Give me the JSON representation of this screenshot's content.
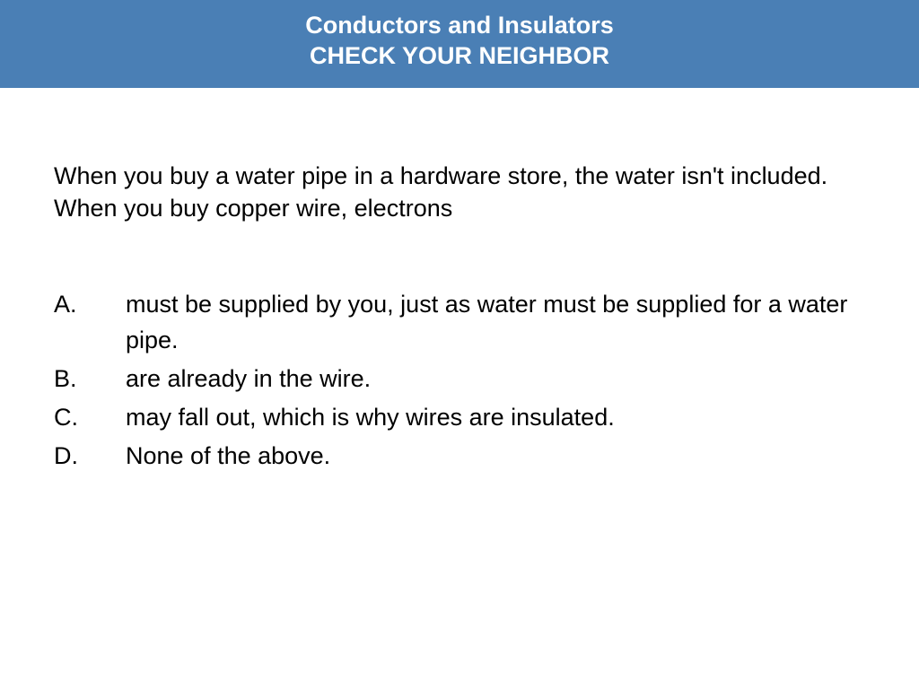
{
  "header": {
    "title_line1": "Conductors and Insulators",
    "title_line2": "CHECK YOUR NEIGHBOR",
    "background_color": "#4a7fb5",
    "text_color": "#ffffff",
    "font_size": 27,
    "font_weight": "bold"
  },
  "body": {
    "background_color": "#ffffff",
    "text_color": "#000000",
    "font_size": 27
  },
  "question": {
    "text": "When you buy a water pipe in a hardware store, the water isn't included. When you buy copper wire, electrons"
  },
  "options": [
    {
      "letter": "A.",
      "text": "must be supplied by you, just as water must be supplied for a water pipe."
    },
    {
      "letter": "B.",
      "text": "are already in the wire."
    },
    {
      "letter": "C.",
      "text": "may fall out, which is why wires are insulated."
    },
    {
      "letter": "D.",
      "text": "None of the above."
    }
  ]
}
